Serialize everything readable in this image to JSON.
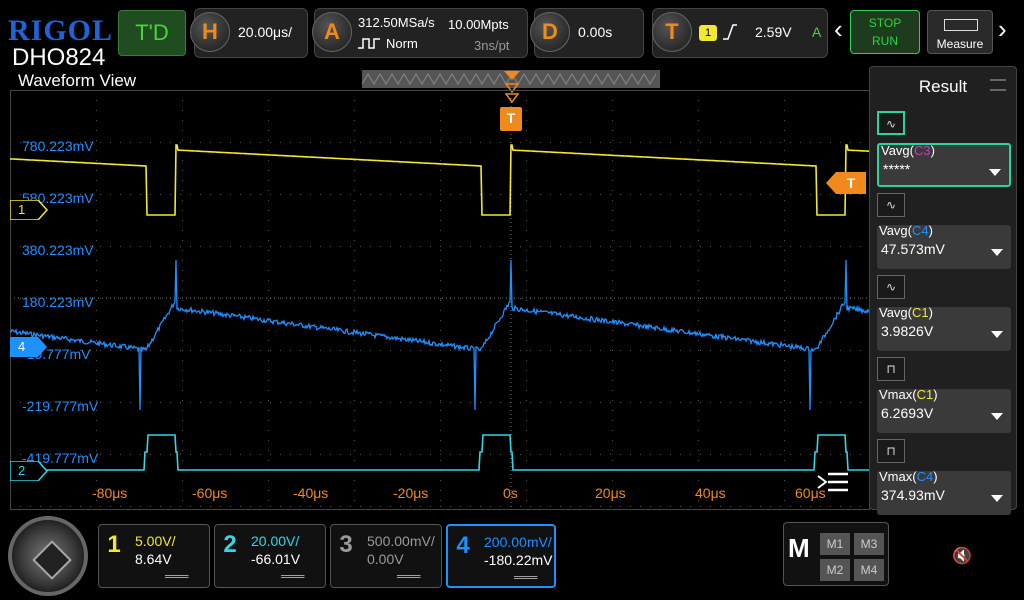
{
  "brand": {
    "logo": "RIGOL",
    "model": "DHO824",
    "view_title": "Waveform View"
  },
  "topbar": {
    "trig_mode": "T'D",
    "horizontal": {
      "key": "H",
      "value": "20.00μs/"
    },
    "acquire": {
      "key": "A",
      "rate": "312.50MSa/s",
      "mode": "Norm",
      "depth": "10.00Mpts",
      "interval": "3ns/pt"
    },
    "delay": {
      "key": "D",
      "value": "0.00s"
    },
    "trigger": {
      "key": "T",
      "source": "1",
      "level": "2.59V",
      "sweep": "A"
    },
    "stop_label": "STOP",
    "run_label": "RUN",
    "measure_label": "Measure"
  },
  "y_labels": [
    "780.223mV",
    "580.223mV",
    "380.223mV",
    "180.223mV",
    "-19.777mV",
    "-219.777mV",
    "-419.777mV"
  ],
  "x_labels": [
    "-80μs",
    "-60μs",
    "-40μs",
    "-20μs",
    "0s",
    "20μs",
    "40μs",
    "60μs"
  ],
  "trigger_marker": "T",
  "channel_markers": {
    "ch1": "1",
    "ch4": "4",
    "ch2": "2"
  },
  "result": {
    "title": "Result",
    "items": [
      {
        "name": "Vavg(C3)",
        "value": "*****",
        "selected": true
      },
      {
        "name": "Vavg(C4)",
        "value": "47.573mV",
        "selected": false
      },
      {
        "name": "Vavg(C1)",
        "value": "3.9826V",
        "selected": false
      },
      {
        "name": "Vmax(C1)",
        "value": "6.2693V",
        "selected": false
      },
      {
        "name": "Vmax(C4)",
        "value": "374.93mV",
        "selected": false
      }
    ]
  },
  "channels": [
    {
      "num": "1",
      "scale": "5.00V/",
      "offset": "8.64V",
      "color": "#f2e831"
    },
    {
      "num": "2",
      "scale": "20.00V/",
      "offset": "-66.01V",
      "color": "#34d6e6"
    },
    {
      "num": "3",
      "scale": "500.00mV/",
      "offset": "0.00V",
      "color": "#9a9a9a"
    },
    {
      "num": "4",
      "scale": "200.00mV/",
      "offset": "-180.22mV",
      "color": "#1e90ff"
    }
  ],
  "math": {
    "key": "M",
    "m1": "M1",
    "m2": "M2",
    "m3": "M3",
    "m4": "M4"
  },
  "colors": {
    "ch1": "#f2e831",
    "ch2": "#34d6e6",
    "ch3": "#9a9a9a",
    "ch4": "#1e90ff",
    "accent": "#f08a1c"
  }
}
